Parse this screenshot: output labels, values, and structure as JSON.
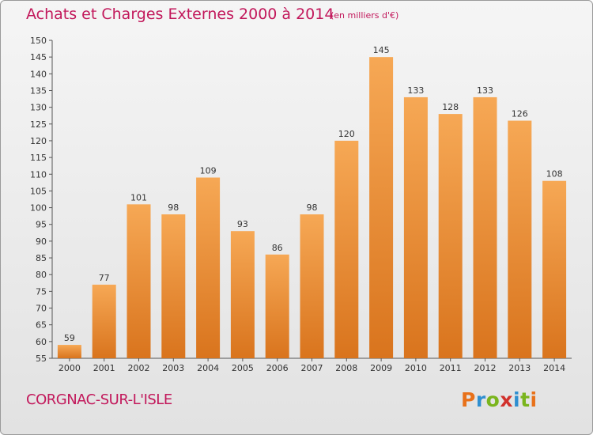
{
  "title": "Achats et Charges Externes 2000 à 2014",
  "subtitle": "(en milliers d'€)",
  "town": "CORGNAC-SUR-L'ISLE",
  "logo": {
    "text": "Proxiti",
    "colors": [
      "#e8711a",
      "#2f8fd0",
      "#7ab51d",
      "#d1312c",
      "#2f8fd0",
      "#7ab51d",
      "#e8711a"
    ]
  },
  "colors": {
    "bar_light": "#f6a855",
    "bar_dark": "#d9741d",
    "title": "#c2185b"
  },
  "chart_data": {
    "type": "bar",
    "title": "Achats et Charges Externes 2000 à 2014",
    "subtitle": "(en milliers d'€)",
    "categories": [
      "2000",
      "2001",
      "2002",
      "2003",
      "2004",
      "2005",
      "2006",
      "2007",
      "2008",
      "2009",
      "2010",
      "2011",
      "2012",
      "2013",
      "2014"
    ],
    "values": [
      59,
      77,
      101,
      98,
      109,
      93,
      86,
      98,
      120,
      145,
      133,
      128,
      133,
      126,
      108
    ],
    "data_labels": [
      "59",
      "77",
      "101",
      "98",
      "109",
      "93",
      "86",
      "98",
      "120",
      "145",
      "133",
      "128",
      "133",
      "126",
      "108"
    ],
    "ylim": [
      55,
      150
    ],
    "yticks": [
      55,
      60,
      65,
      70,
      75,
      80,
      85,
      90,
      95,
      100,
      105,
      110,
      115,
      120,
      125,
      130,
      135,
      140,
      145,
      150
    ],
    "grid": false,
    "legend": "none"
  }
}
